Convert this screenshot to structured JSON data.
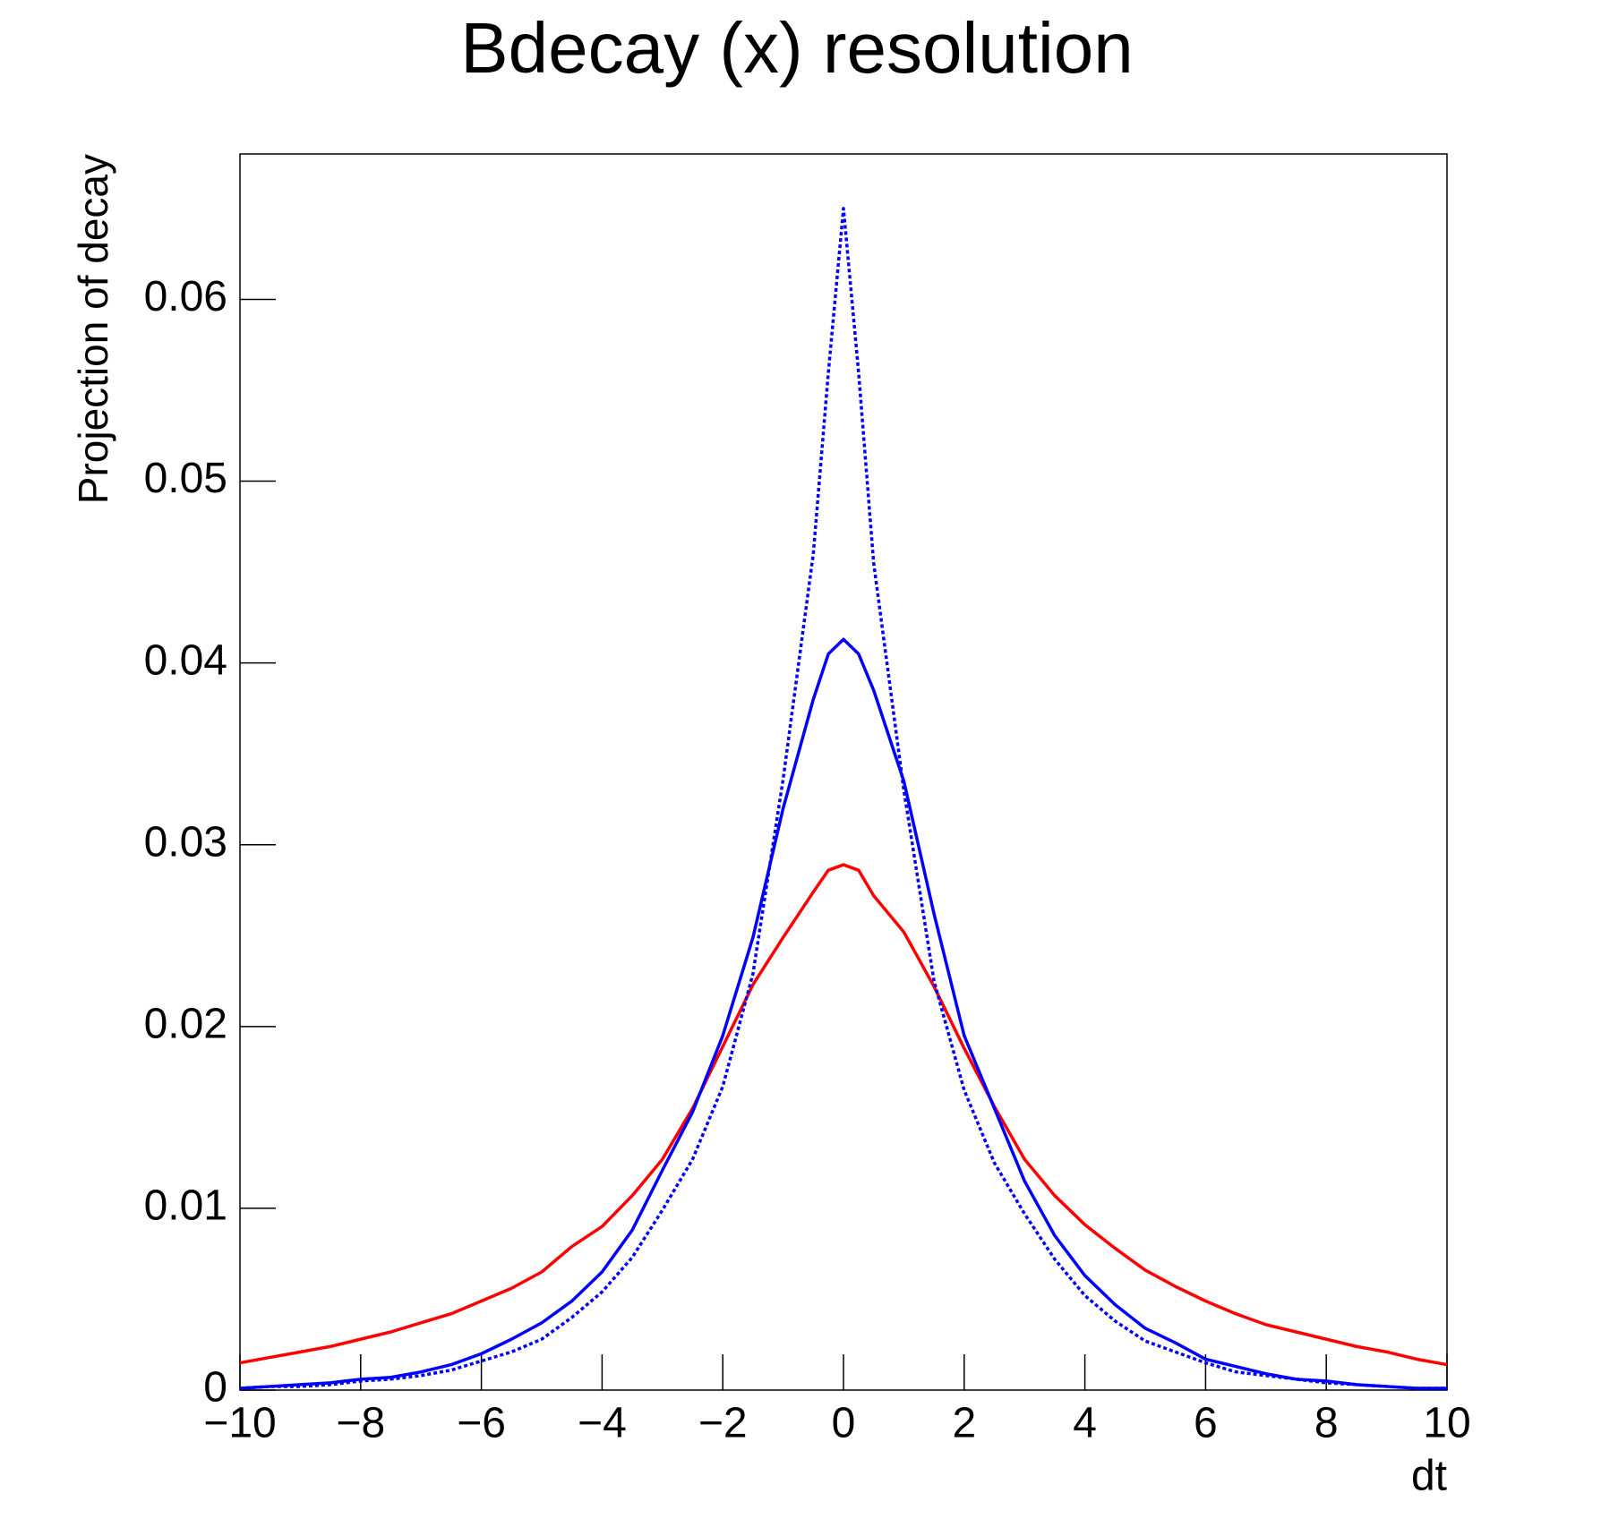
{
  "chart_data": {
    "type": "line",
    "title": "Bdecay (x) resolution",
    "x_label": "dt",
    "y_label": "Projection of decay",
    "x": [
      -10,
      -9.5,
      -9,
      -8.5,
      -8,
      -7.5,
      -7,
      -6.5,
      -6,
      -5.5,
      -5,
      -4.5,
      -4,
      -3.5,
      -3,
      -2.5,
      -2,
      -1.5,
      -1,
      -0.5,
      -0.25,
      0,
      0.25,
      0.5,
      1,
      1.5,
      2,
      2.5,
      3,
      3.5,
      4,
      4.5,
      5,
      5.5,
      6,
      6.5,
      7,
      7.5,
      8,
      8.5,
      9,
      9.5,
      10
    ],
    "series": [
      {
        "color": "#ff0000",
        "dash": "solid",
        "values": [
          0.0015,
          0.0018,
          0.0021,
          0.0024,
          0.0028,
          0.0032,
          0.0037,
          0.0042,
          0.0049,
          0.0056,
          0.0065,
          0.0079,
          0.009,
          0.0107,
          0.0127,
          0.0155,
          0.0189,
          0.0223,
          0.0249,
          0.0274,
          0.0286,
          0.0289,
          0.0286,
          0.0272,
          0.0252,
          0.0222,
          0.0188,
          0.0156,
          0.0127,
          0.0107,
          0.0091,
          0.0078,
          0.0066,
          0.0057,
          0.0049,
          0.0042,
          0.0036,
          0.0032,
          0.0028,
          0.0024,
          0.0021,
          0.0017,
          0.0014
        ]
      },
      {
        "color": "#0000ff",
        "dash": "solid",
        "values": [
          0.0001,
          0.0002,
          0.0003,
          0.0004,
          0.0006,
          0.0007,
          0.001,
          0.0014,
          0.002,
          0.0028,
          0.0037,
          0.0049,
          0.0065,
          0.0088,
          0.0121,
          0.0153,
          0.0195,
          0.0249,
          0.032,
          0.038,
          0.0405,
          0.0413,
          0.0405,
          0.0385,
          0.0335,
          0.0262,
          0.0195,
          0.0155,
          0.0115,
          0.0085,
          0.0063,
          0.0047,
          0.0034,
          0.0026,
          0.0017,
          0.0013,
          0.0009,
          0.0006,
          0.0005,
          0.0003,
          0.0002,
          0.0001,
          0.0001
        ]
      },
      {
        "color": "#0000ff",
        "dash": "dotted",
        "values": [
          0.0001,
          0.0002,
          0.0002,
          0.0003,
          0.0005,
          0.0006,
          0.0008,
          0.0011,
          0.0016,
          0.0021,
          0.0028,
          0.004,
          0.0054,
          0.0073,
          0.0099,
          0.0127,
          0.0167,
          0.0229,
          0.0336,
          0.046,
          0.056,
          0.065,
          0.056,
          0.0455,
          0.033,
          0.0225,
          0.0165,
          0.0125,
          0.0097,
          0.0072,
          0.0052,
          0.0038,
          0.0027,
          0.0021,
          0.0015,
          0.001,
          0.0008,
          0.0006,
          0.0004,
          0.0003,
          0.0002,
          0.0001,
          0.0001
        ]
      }
    ],
    "xlim": [
      -10,
      10
    ],
    "xticks": [
      {
        "value": -10,
        "label": "−10"
      },
      {
        "value": -8,
        "label": "−8"
      },
      {
        "value": -6,
        "label": "−6"
      },
      {
        "value": -4,
        "label": "−4"
      },
      {
        "value": -2,
        "label": "−2"
      },
      0,
      2,
      4,
      6,
      8,
      10
    ],
    "ylim": [
      0,
      0.068
    ],
    "yticks": [
      0,
      0.01,
      0.02,
      0.03,
      0.04,
      0.05,
      0.06
    ]
  }
}
